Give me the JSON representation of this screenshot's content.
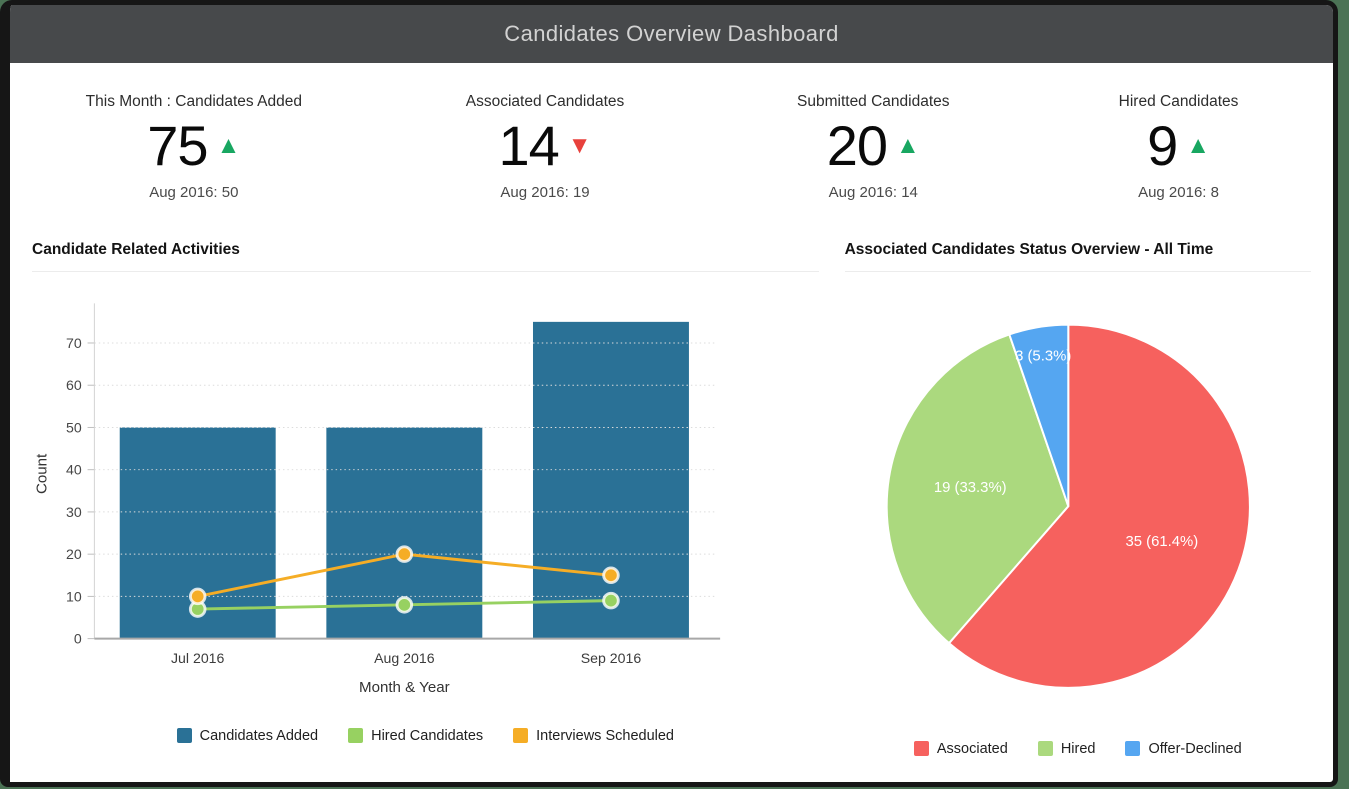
{
  "window": {
    "title": "Candidates Overview Dashboard"
  },
  "colors": {
    "up": "#18a761",
    "down": "#e8413c"
  },
  "kpis": [
    {
      "label": "This Month : Candidates Added",
      "value": "75",
      "trend": "up",
      "trend_icon": "▲",
      "sub": "Aug 2016: 50"
    },
    {
      "label": "Associated Candidates",
      "value": "14",
      "trend": "down",
      "trend_icon": "▼",
      "sub": "Aug 2016: 19"
    },
    {
      "label": "Submitted Candidates",
      "value": "20",
      "trend": "up",
      "trend_icon": "▲",
      "sub": "Aug 2016: 14"
    },
    {
      "label": "Hired Candidates",
      "value": "9",
      "trend": "up",
      "trend_icon": "▲",
      "sub": "Aug 2016: 8"
    }
  ],
  "chart_data": [
    {
      "type": "bar",
      "title": "Candidate Related Activities",
      "categories": [
        "Jul 2016",
        "Aug 2016",
        "Sep 2016"
      ],
      "series": [
        {
          "name": "Candidates Added",
          "type": "bar",
          "color": "#2a7196",
          "values": [
            50,
            50,
            75
          ]
        },
        {
          "name": "Hired Candidates",
          "type": "line",
          "color": "#97d161",
          "values": [
            7,
            8,
            9
          ]
        },
        {
          "name": "Interviews Scheduled",
          "type": "line",
          "color": "#f5ad26",
          "values": [
            10,
            20,
            15
          ]
        }
      ],
      "xlabel": "Month & Year",
      "ylabel": "Count",
      "yticks": [
        0,
        10,
        20,
        30,
        40,
        50,
        60,
        70
      ],
      "ylim": [
        0,
        78
      ],
      "grid": true,
      "legend_position": "bottom"
    },
    {
      "type": "pie",
      "title": "Associated Candidates Status Overview - All Time",
      "slices": [
        {
          "name": "Associated",
          "value": 35,
          "pct": "61.4%",
          "label": "35 (61.4%)",
          "color": "#f6615e"
        },
        {
          "name": "Hired",
          "value": 19,
          "pct": "33.3%",
          "label": "19 (33.3%)",
          "color": "#abd97e"
        },
        {
          "name": "Offer-Declined",
          "value": 3,
          "pct": "5.3%",
          "label": "3 (5.3%)",
          "color": "#55a6f1"
        }
      ],
      "start_angle_deg": 0,
      "direction": "clockwise",
      "legend_position": "bottom"
    }
  ]
}
